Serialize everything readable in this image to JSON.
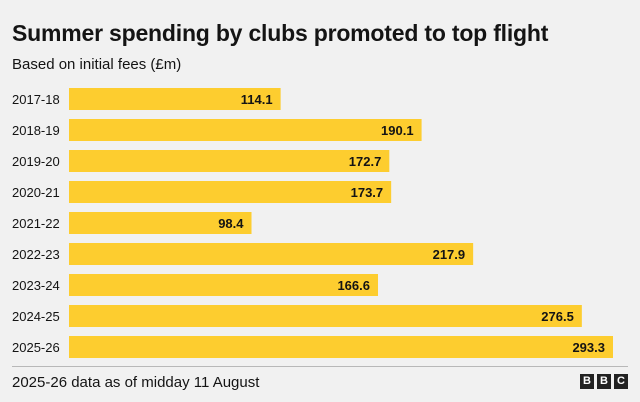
{
  "title": "Summer spending by clubs promoted to top flight",
  "subtitle": "Based on initial fees (£m)",
  "footnote": "2025-26 data as of midday 11 August",
  "logo": [
    "B",
    "B",
    "C"
  ],
  "colors": {
    "bar": "#fdcd2f",
    "background": "#f1f1f1"
  },
  "chart_data": {
    "type": "bar",
    "orientation": "horizontal",
    "title": "Summer spending by clubs promoted to top flight",
    "subtitle": "Based on initial fees (£m)",
    "categories": [
      "2017-18",
      "2018-19",
      "2019-20",
      "2020-21",
      "2021-22",
      "2022-23",
      "2023-24",
      "2024-25",
      "2025-26"
    ],
    "values": [
      114.1,
      190.1,
      172.7,
      173.7,
      98.4,
      217.9,
      166.6,
      276.5,
      293.3
    ],
    "value_labels": [
      "114.1",
      "190.1",
      "172.7",
      "173.7",
      "98.4",
      "217.9",
      "166.6",
      "276.5",
      "293.3"
    ],
    "xlim": [
      0,
      293.3
    ],
    "grid": false,
    "legend": "none"
  }
}
